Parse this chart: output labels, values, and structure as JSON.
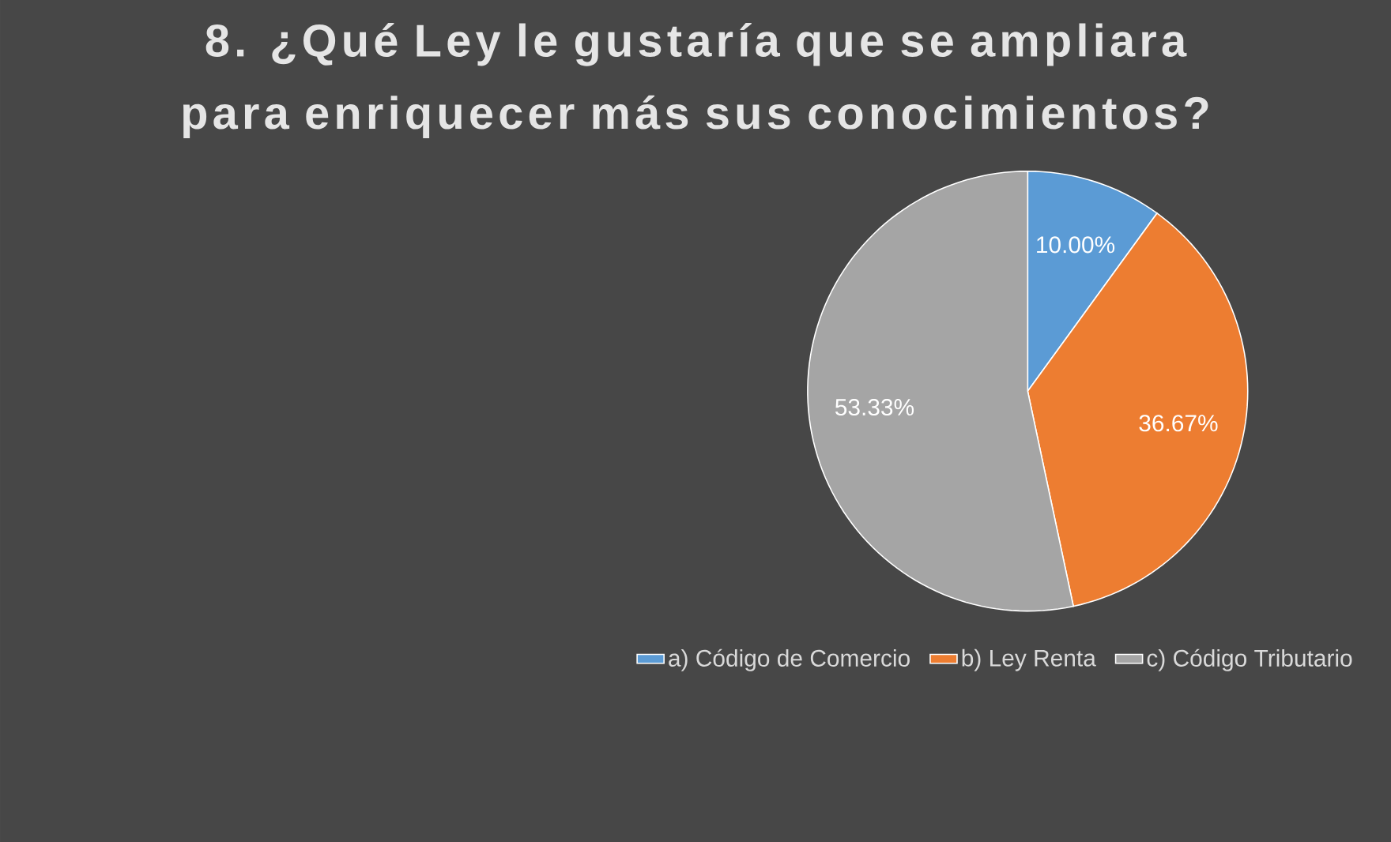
{
  "chart_data": {
    "type": "pie",
    "title": "8. ¿Qué Ley le gustaría que se ampliara para enriquecer más sus conocimientos?",
    "categories": [
      "a) Código de Comercio",
      "b) Ley Renta",
      "c) Código Tributario"
    ],
    "values": [
      10.0,
      36.67,
      53.33
    ],
    "colors": [
      "#5b9bd5",
      "#ed7d31",
      "#a5a5a5"
    ],
    "value_labels": [
      "10.00%",
      "36.67%",
      "53.33%"
    ],
    "legend": "bottom"
  }
}
